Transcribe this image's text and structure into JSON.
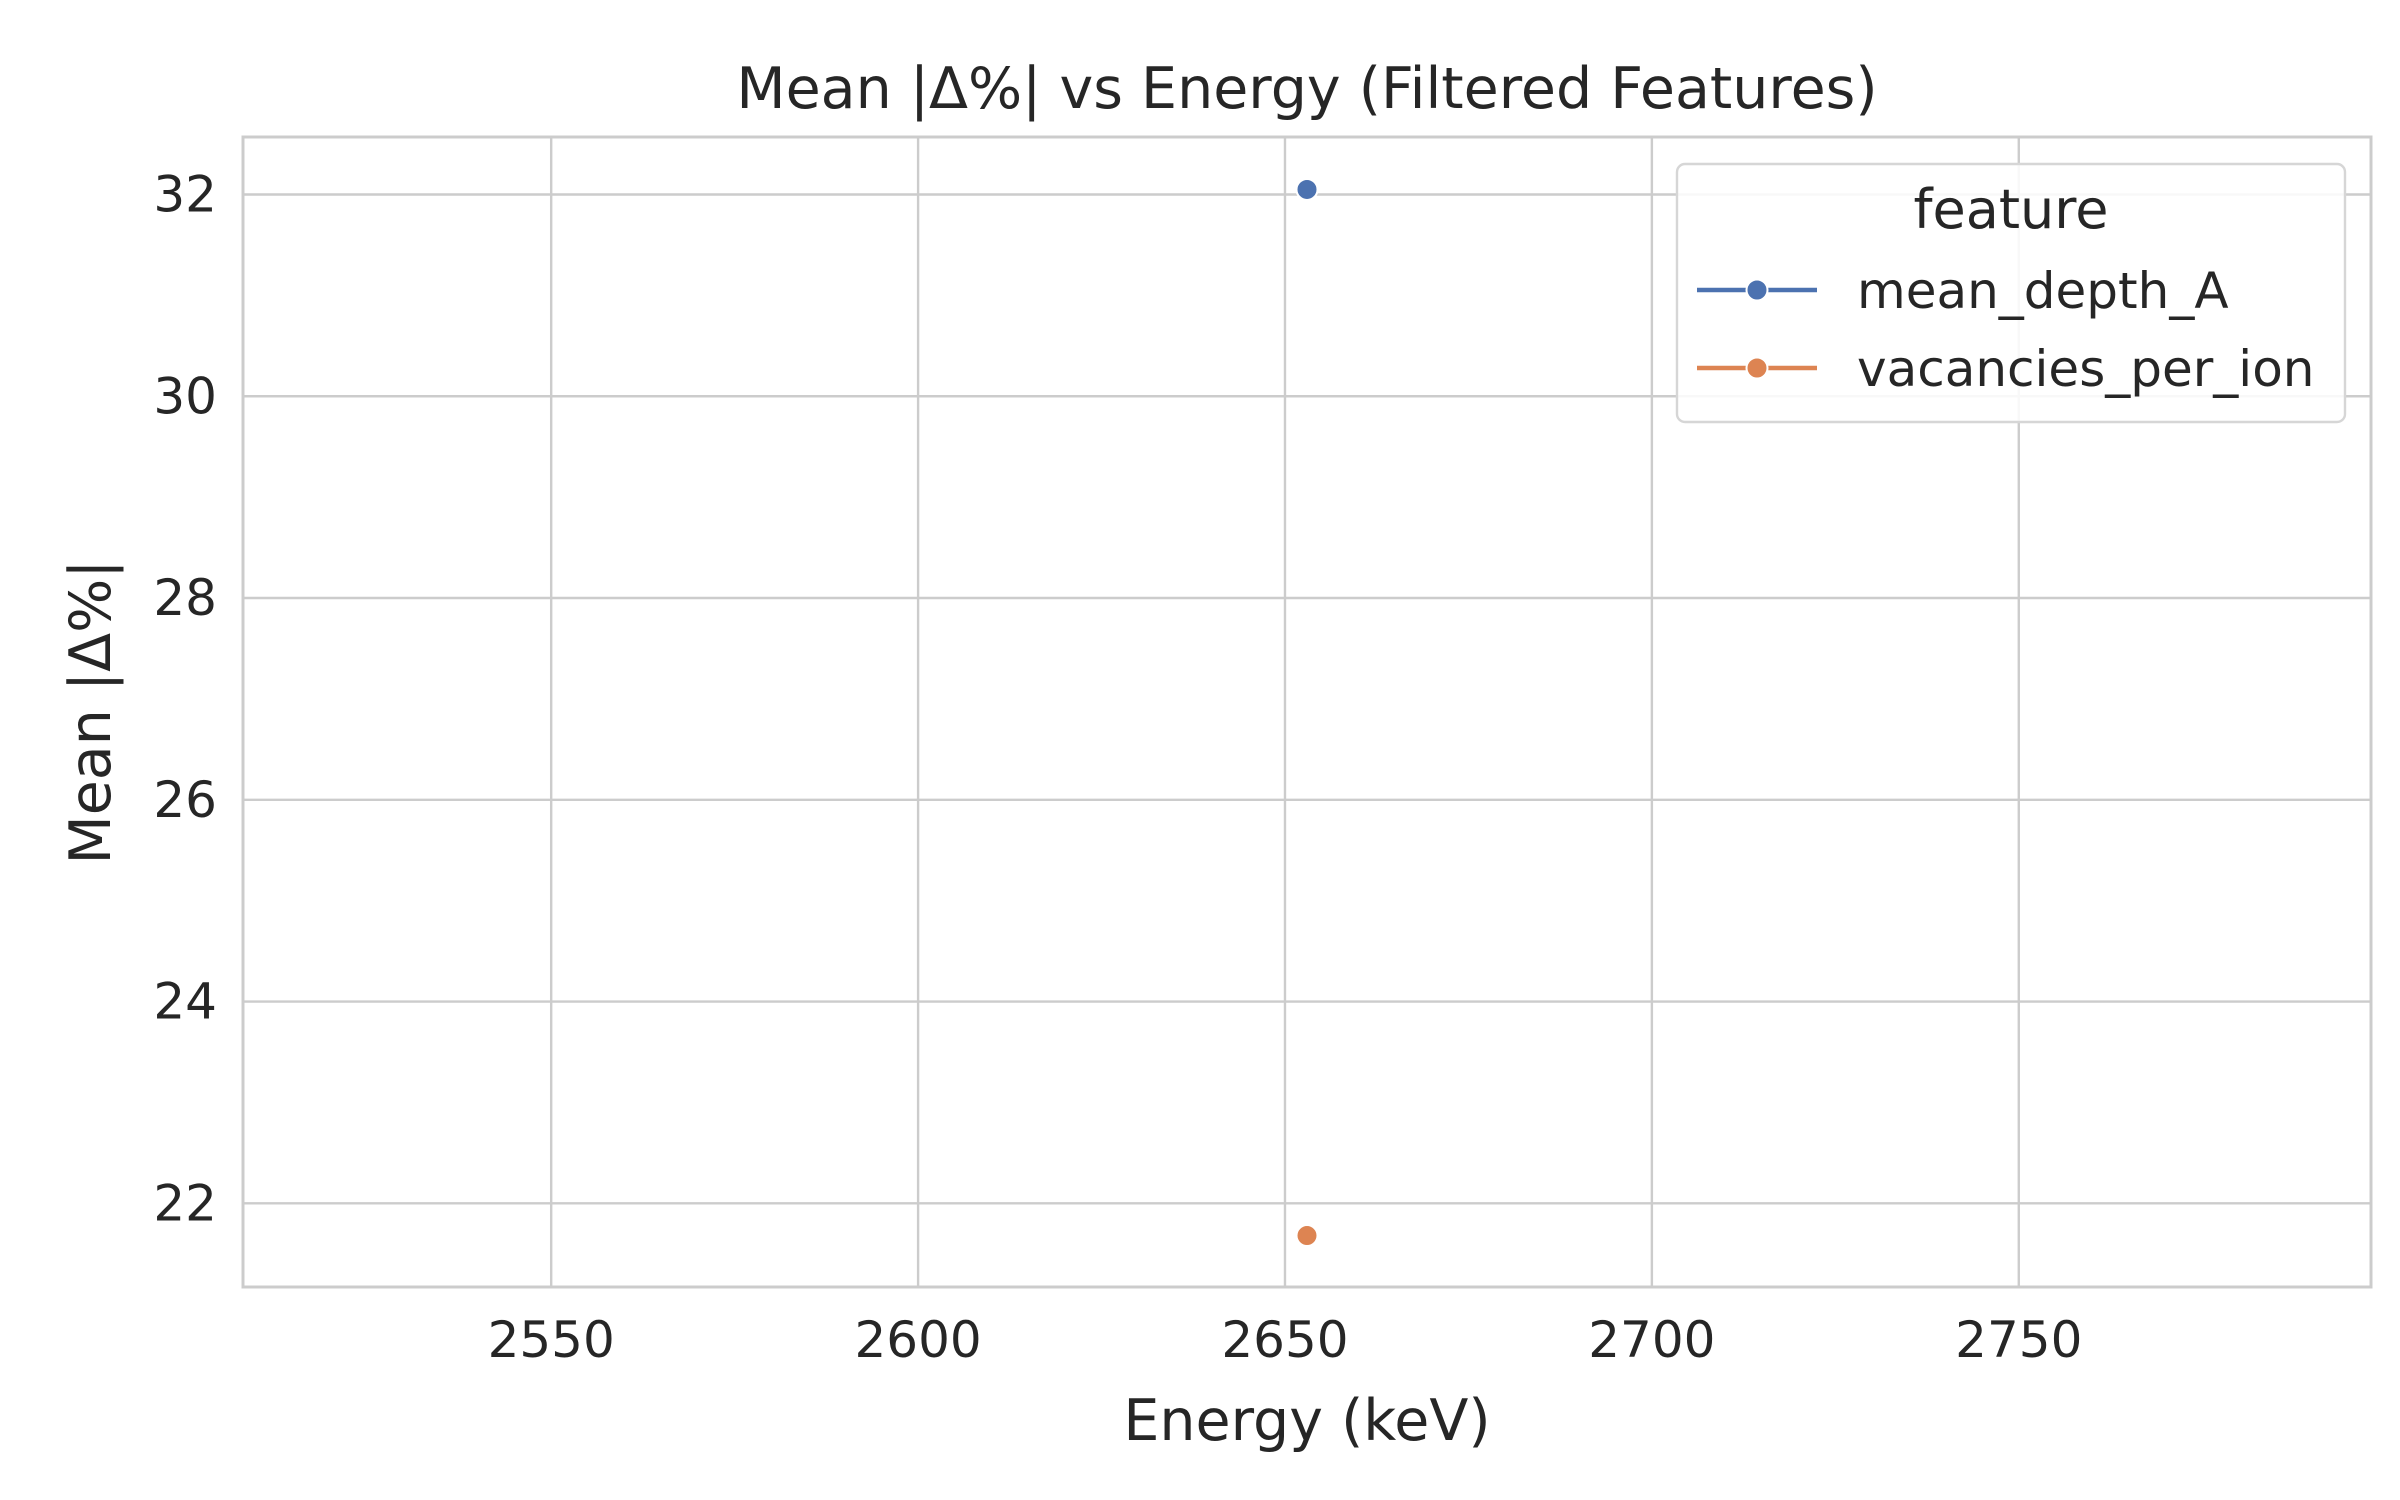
{
  "chart_data": {
    "type": "scatter",
    "title": "Mean |Δ%| vs Energy (Filtered Features)",
    "xlabel": "Energy (keV)",
    "ylabel": "Mean |Δ%|",
    "xlim": [
      2508,
      2798
    ],
    "ylim": [
      21.17,
      32.57
    ],
    "xticks": [
      2550,
      2600,
      2650,
      2700,
      2750
    ],
    "yticks": [
      22,
      24,
      26,
      28,
      30,
      32
    ],
    "grid": true,
    "legend": {
      "title": "feature",
      "position": "top-right"
    },
    "series": [
      {
        "name": "mean_depth_A",
        "color": "#4c72b0",
        "x": [
          2653
        ],
        "y": [
          32.05
        ]
      },
      {
        "name": "vacancies_per_ion",
        "color": "#dd8452",
        "x": [
          2653
        ],
        "y": [
          21.68
        ]
      }
    ]
  }
}
